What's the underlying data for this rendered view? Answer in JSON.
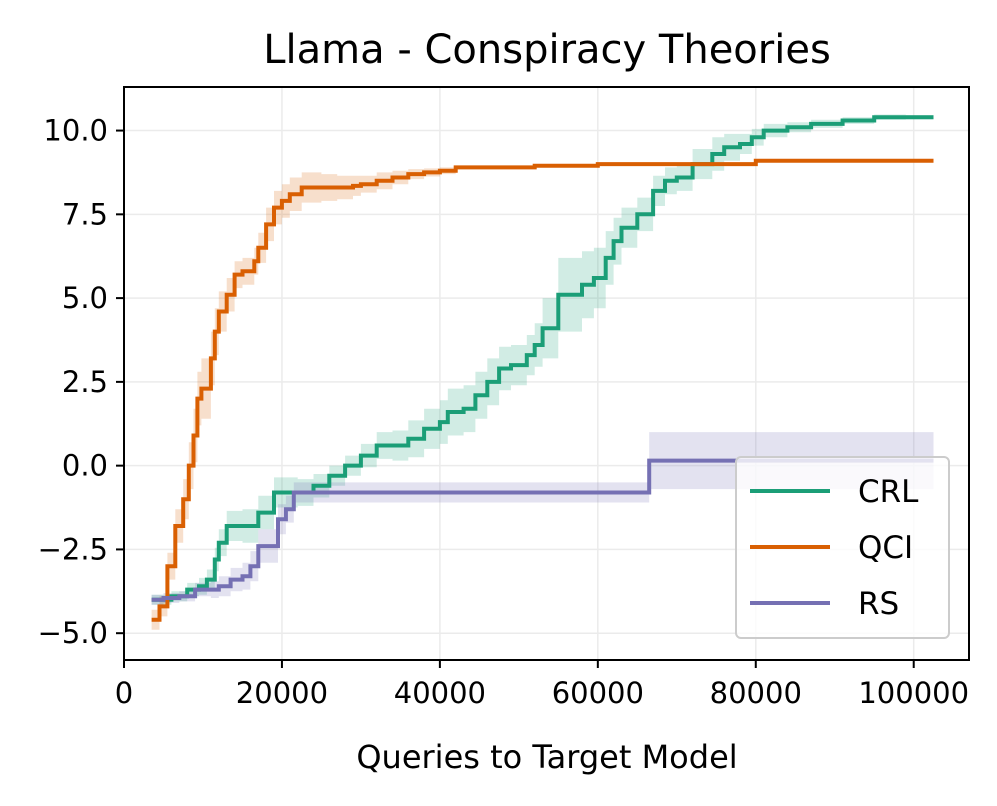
{
  "chart_data": {
    "type": "line",
    "title": "Llama - Conspiracy Theories",
    "xlabel": "Queries to Target Model",
    "ylabel": "",
    "xlim": [
      0,
      107000
    ],
    "ylim": [
      -5.8,
      11.3
    ],
    "xticks": [
      0,
      20000,
      40000,
      60000,
      80000,
      100000
    ],
    "xtick_labels": [
      "0",
      "20000",
      "40000",
      "60000",
      "80000",
      "100000"
    ],
    "yticks": [
      -5.0,
      -2.5,
      0.0,
      2.5,
      5.0,
      7.5,
      10.0
    ],
    "ytick_labels": [
      "−5.0",
      "−2.5",
      "0.0",
      "2.5",
      "5.0",
      "7.5",
      "10.0"
    ],
    "grid": true,
    "legend_position": "lower-right",
    "series": [
      {
        "name": "CRL",
        "color": "#1b9e77",
        "x": [
          3500,
          6000,
          8000,
          9500,
          10500,
          11500,
          12000,
          13000,
          15000,
          17000,
          19000,
          22000,
          24000,
          26000,
          28000,
          30000,
          32000,
          34000,
          36000,
          38000,
          40000,
          41000,
          43000,
          44500,
          46000,
          47500,
          49000,
          51000,
          52000,
          53000,
          55000,
          58000,
          59500,
          61000,
          62000,
          63000,
          65000,
          67000,
          68500,
          70000,
          72000,
          74500,
          76000,
          78000,
          79500,
          81000,
          84000,
          87000,
          91000,
          95000,
          99000,
          102500
        ],
        "y": [
          -4.0,
          -3.9,
          -3.7,
          -3.6,
          -3.4,
          -2.8,
          -2.3,
          -1.8,
          -1.8,
          -1.4,
          -0.8,
          -0.8,
          -0.6,
          -0.3,
          0.0,
          0.3,
          0.6,
          0.6,
          0.8,
          1.1,
          1.3,
          1.6,
          1.7,
          2.1,
          2.5,
          2.9,
          3.0,
          3.3,
          3.6,
          4.1,
          5.1,
          5.4,
          5.6,
          6.2,
          6.7,
          7.1,
          7.5,
          8.2,
          8.5,
          8.6,
          9.0,
          9.3,
          9.5,
          9.6,
          9.8,
          10.0,
          10.1,
          10.2,
          10.3,
          10.4,
          10.4,
          10.4
        ],
        "band": [
          0.15,
          0.15,
          0.2,
          0.25,
          0.3,
          0.35,
          0.4,
          0.45,
          0.5,
          0.5,
          0.45,
          0.4,
          0.35,
          0.3,
          0.3,
          0.35,
          0.4,
          0.45,
          0.55,
          0.6,
          0.65,
          0.7,
          0.7,
          0.7,
          0.7,
          0.65,
          0.6,
          0.6,
          0.65,
          0.9,
          1.1,
          1.0,
          0.9,
          0.8,
          0.7,
          0.6,
          0.5,
          0.45,
          0.4,
          0.4,
          0.45,
          0.5,
          0.4,
          0.3,
          0.25,
          0.2,
          0.15,
          0.12,
          0.1,
          0.08,
          0.06,
          0.05
        ]
      },
      {
        "name": "QCI",
        "color": "#d95f02",
        "x": [
          3500,
          4500,
          5500,
          6500,
          7500,
          8200,
          8800,
          9300,
          9800,
          11000,
          11500,
          12000,
          13000,
          14000,
          15000,
          16500,
          17000,
          18000,
          19000,
          20000,
          21000,
          22500,
          25000,
          27000,
          29000,
          30000,
          32000,
          34000,
          36000,
          38000,
          40000,
          42000,
          48000,
          52000,
          60000,
          70000,
          80000,
          90000,
          102500
        ],
        "y": [
          -4.6,
          -4.2,
          -3.0,
          -1.8,
          -1.0,
          0.0,
          0.9,
          2.0,
          2.3,
          3.2,
          4.0,
          4.6,
          5.1,
          5.7,
          5.8,
          6.1,
          6.5,
          7.2,
          7.7,
          7.9,
          8.1,
          8.3,
          8.3,
          8.3,
          8.35,
          8.4,
          8.5,
          8.6,
          8.7,
          8.75,
          8.8,
          8.9,
          8.9,
          8.95,
          9.0,
          9.0,
          9.1,
          9.1,
          9.1
        ],
        "band": [
          0.3,
          0.3,
          0.4,
          0.5,
          0.6,
          0.7,
          0.8,
          0.8,
          0.9,
          0.8,
          0.7,
          0.6,
          0.5,
          0.4,
          0.4,
          0.4,
          0.45,
          0.5,
          0.5,
          0.5,
          0.5,
          0.45,
          0.4,
          0.35,
          0.3,
          0.25,
          0.25,
          0.2,
          0.15,
          0.12,
          0.1,
          0.05,
          0.04,
          0.03,
          0.02,
          0.02,
          0.01,
          0.01,
          0.01
        ]
      },
      {
        "name": "RS",
        "color": "#7570b3",
        "x": [
          3500,
          5000,
          7000,
          9000,
          11000,
          12000,
          13500,
          15000,
          16000,
          17000,
          18500,
          19500,
          20500,
          21500,
          23000,
          30000,
          40000,
          50000,
          60000,
          66000,
          66500,
          75000,
          85000,
          95000,
          102500
        ],
        "y": [
          -4.0,
          -3.95,
          -3.9,
          -3.7,
          -3.7,
          -3.6,
          -3.4,
          -3.3,
          -3.0,
          -2.4,
          -2.4,
          -1.6,
          -1.3,
          -0.8,
          -0.8,
          -0.8,
          -0.8,
          -0.8,
          -0.8,
          -0.8,
          0.15,
          0.15,
          0.15,
          0.15,
          0.15
        ],
        "band": [
          0.15,
          0.15,
          0.15,
          0.2,
          0.25,
          0.3,
          0.35,
          0.4,
          0.45,
          0.5,
          0.5,
          0.45,
          0.4,
          0.3,
          0.3,
          0.3,
          0.3,
          0.3,
          0.3,
          0.3,
          0.85,
          0.85,
          0.85,
          0.85,
          0.85
        ]
      }
    ]
  }
}
